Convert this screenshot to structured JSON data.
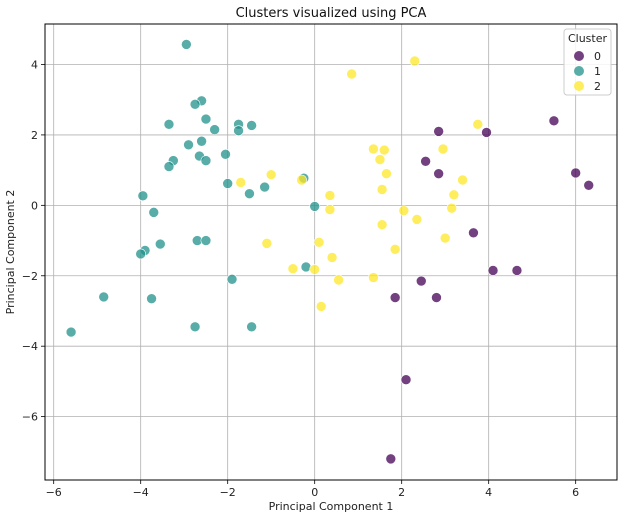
{
  "chart_data": {
    "type": "scatter",
    "title": "Clusters visualized using PCA",
    "xlabel": "Principal Component 1",
    "ylabel": "Principal Component 2",
    "xlim": [
      -6.2,
      6.95
    ],
    "ylim": [
      -7.8,
      5.15
    ],
    "xticks": [
      -6,
      -4,
      -2,
      0,
      2,
      4,
      6
    ],
    "yticks": [
      -6,
      -4,
      -2,
      0,
      2,
      4
    ],
    "grid": true,
    "legend": {
      "title": "Cluster",
      "placement": "top-right"
    },
    "series": [
      {
        "name": "0",
        "color": "#440154",
        "points": [
          [
            2.85,
            2.1
          ],
          [
            3.95,
            2.07
          ],
          [
            5.5,
            2.4
          ],
          [
            2.55,
            1.25
          ],
          [
            2.85,
            0.9
          ],
          [
            6.0,
            0.92
          ],
          [
            6.3,
            0.57
          ],
          [
            3.65,
            -0.78
          ],
          [
            4.1,
            -1.85
          ],
          [
            4.65,
            -1.85
          ],
          [
            2.45,
            -2.15
          ],
          [
            1.85,
            -2.62
          ],
          [
            2.8,
            -2.62
          ],
          [
            2.1,
            -4.95
          ],
          [
            1.75,
            -7.2
          ]
        ]
      },
      {
        "name": "1",
        "color": "#21918c",
        "points": [
          [
            -2.95,
            4.57
          ],
          [
            -2.6,
            2.97
          ],
          [
            -2.75,
            2.87
          ],
          [
            -2.5,
            2.45
          ],
          [
            -3.35,
            2.3
          ],
          [
            -1.75,
            2.3
          ],
          [
            -1.45,
            2.27
          ],
          [
            -2.3,
            2.15
          ],
          [
            -1.75,
            2.12
          ],
          [
            -2.6,
            1.82
          ],
          [
            -2.9,
            1.72
          ],
          [
            -2.65,
            1.4
          ],
          [
            -2.05,
            1.45
          ],
          [
            -2.5,
            1.27
          ],
          [
            -3.25,
            1.27
          ],
          [
            -3.35,
            1.1
          ],
          [
            -2.0,
            0.62
          ],
          [
            -1.15,
            0.52
          ],
          [
            -1.5,
            0.33
          ],
          [
            -0.25,
            0.77
          ],
          [
            -3.95,
            0.27
          ],
          [
            -3.7,
            -0.2
          ],
          [
            0.0,
            -0.03
          ],
          [
            -2.7,
            -1.0
          ],
          [
            -2.5,
            -1.0
          ],
          [
            -3.55,
            -1.1
          ],
          [
            -3.9,
            -1.28
          ],
          [
            -4.0,
            -1.38
          ],
          [
            -1.9,
            -2.1
          ],
          [
            -0.2,
            -1.75
          ],
          [
            -4.85,
            -2.6
          ],
          [
            -3.75,
            -2.65
          ],
          [
            -2.75,
            -3.45
          ],
          [
            -1.45,
            -3.45
          ],
          [
            -5.6,
            -3.6
          ]
        ]
      },
      {
        "name": "2",
        "color": "#fde725",
        "points": [
          [
            2.3,
            4.1
          ],
          [
            0.85,
            3.73
          ],
          [
            3.75,
            2.3
          ],
          [
            1.35,
            1.6
          ],
          [
            1.6,
            1.57
          ],
          [
            2.95,
            1.6
          ],
          [
            1.5,
            1.3
          ],
          [
            1.65,
            0.9
          ],
          [
            -1.0,
            0.87
          ],
          [
            -1.7,
            0.65
          ],
          [
            -0.3,
            0.72
          ],
          [
            3.4,
            0.72
          ],
          [
            1.55,
            0.45
          ],
          [
            3.2,
            0.3
          ],
          [
            0.35,
            0.28
          ],
          [
            0.35,
            -0.12
          ],
          [
            3.15,
            -0.08
          ],
          [
            2.05,
            -0.15
          ],
          [
            2.35,
            -0.4
          ],
          [
            1.55,
            -0.55
          ],
          [
            3.0,
            -0.93
          ],
          [
            -1.1,
            -1.08
          ],
          [
            0.1,
            -1.05
          ],
          [
            1.85,
            -1.25
          ],
          [
            0.4,
            -1.48
          ],
          [
            -0.5,
            -1.8
          ],
          [
            0.0,
            -1.82
          ],
          [
            1.35,
            -2.05
          ],
          [
            0.55,
            -2.12
          ],
          [
            0.15,
            -2.87
          ]
        ]
      }
    ]
  }
}
